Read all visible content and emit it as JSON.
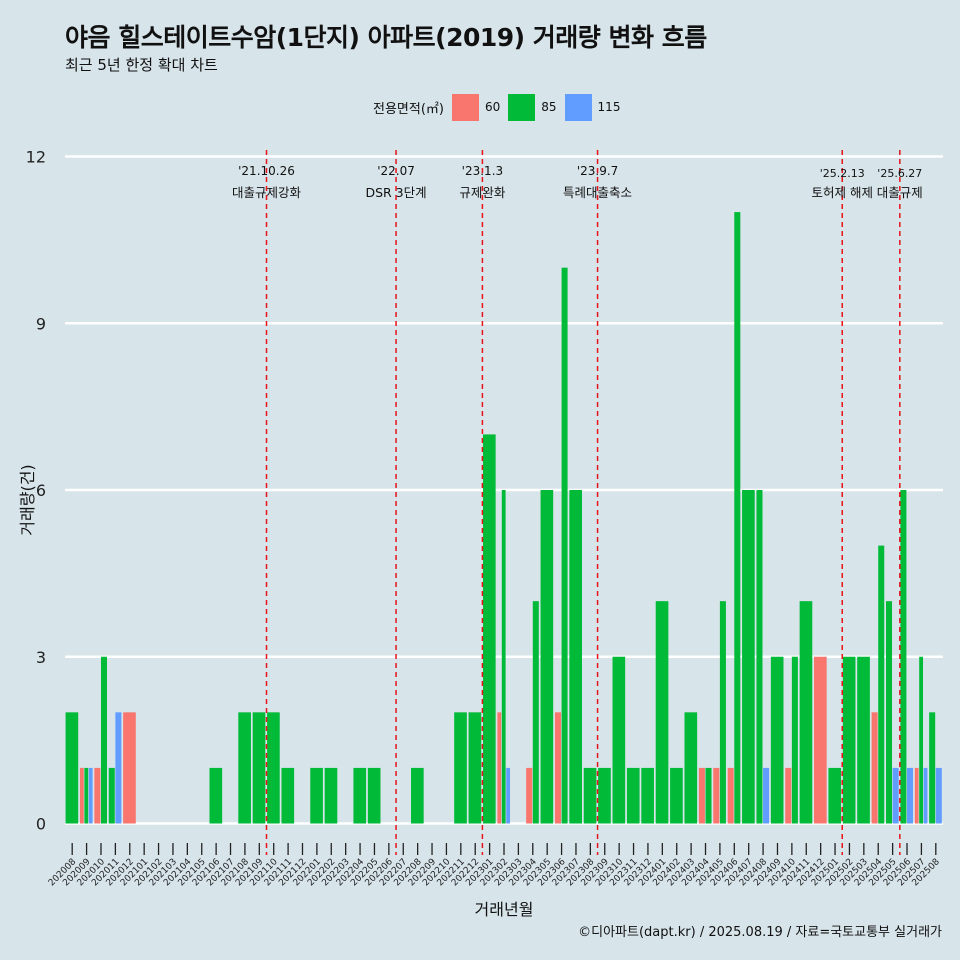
{
  "title": "야음 힐스테이트수암(1단지) 아파트(2019) 거래량 변화 흐름",
  "subtitle": "최근 5년 한정 확대 차트",
  "caption": "©디아파트(dapt.kr) / 2025.08.19 / 자료=국토교통부 실거래가",
  "legend": {
    "title": "전용면적(㎡)",
    "items": [
      {
        "label": "60",
        "color": "#f8766d"
      },
      {
        "label": "85",
        "color": "#00ba38"
      },
      {
        "label": "115",
        "color": "#619cff"
      }
    ]
  },
  "chart_data": {
    "type": "bar",
    "xlabel": "거래년월",
    "ylabel": "거래량(건)",
    "ylim": [
      0,
      12
    ],
    "yticks": [
      0,
      3,
      6,
      9,
      12
    ],
    "grid": true,
    "legend_placement": "top",
    "categories": [
      "202008",
      "202009",
      "202010",
      "202011",
      "202012",
      "202101",
      "202102",
      "202103",
      "202104",
      "202105",
      "202106",
      "202107",
      "202108",
      "202109",
      "202110",
      "202111",
      "202112",
      "202201",
      "202202",
      "202203",
      "202204",
      "202205",
      "202206",
      "202207",
      "202208",
      "202209",
      "202210",
      "202211",
      "202212",
      "202301",
      "202302",
      "202303",
      "202304",
      "202305",
      "202306",
      "202307",
      "202308",
      "202309",
      "202310",
      "202311",
      "202312",
      "202401",
      "202402",
      "202403",
      "202404",
      "202405",
      "202406",
      "202407",
      "202408",
      "202409",
      "202410",
      "202411",
      "202412",
      "202501",
      "202502",
      "202503",
      "202504",
      "202505",
      "202506",
      "202507",
      "202508"
    ],
    "series": [
      {
        "name": "60",
        "color": "#f8766d",
        "values": [
          0,
          1,
          1,
          0,
          2,
          0,
          0,
          0,
          0,
          0,
          0,
          0,
          0,
          0,
          0,
          0,
          0,
          0,
          0,
          0,
          0,
          0,
          0,
          0,
          0,
          0,
          0,
          0,
          0,
          0,
          2,
          0,
          1,
          0,
          2,
          0,
          0,
          0,
          0,
          0,
          0,
          0,
          0,
          0,
          1,
          1,
          1,
          0,
          0,
          0,
          1,
          0,
          3,
          0,
          0,
          0,
          2,
          0,
          0,
          1,
          0
        ]
      },
      {
        "name": "85",
        "color": "#00ba38",
        "values": [
          2,
          1,
          3,
          1,
          0,
          0,
          0,
          0,
          0,
          0,
          1,
          0,
          2,
          2,
          2,
          1,
          0,
          1,
          1,
          0,
          1,
          1,
          0,
          0,
          1,
          0,
          0,
          2,
          2,
          7,
          6,
          0,
          4,
          6,
          10,
          6,
          1,
          1,
          3,
          1,
          1,
          4,
          1,
          2,
          1,
          4,
          11,
          6,
          6,
          3,
          3,
          4,
          0,
          1,
          3,
          3,
          5,
          4,
          6,
          3,
          2
        ]
      },
      {
        "name": "115",
        "color": "#619cff",
        "values": [
          0,
          1,
          0,
          2,
          0,
          0,
          0,
          0,
          0,
          0,
          0,
          0,
          0,
          0,
          0,
          0,
          0,
          0,
          0,
          0,
          0,
          0,
          0,
          0,
          0,
          0,
          0,
          0,
          0,
          0,
          1,
          0,
          0,
          0,
          0,
          0,
          0,
          0,
          0,
          0,
          0,
          0,
          0,
          0,
          0,
          0,
          0,
          0,
          1,
          0,
          0,
          0,
          0,
          0,
          0,
          0,
          0,
          1,
          1,
          1,
          1
        ]
      }
    ],
    "annotations": [
      {
        "after": "202109",
        "date": "'21.10.26",
        "text": "대출규제강화"
      },
      {
        "after": "202206",
        "date": "'22.07",
        "text": "DSR 3단계"
      },
      {
        "after": "202212",
        "date": "'23.1.3",
        "text": "규제완화"
      },
      {
        "after": "202308",
        "date": "'23.9.7",
        "text": "특례대출축소"
      },
      {
        "after": "202501",
        "date": "'25.2.13",
        "text": "토허제 해제"
      },
      {
        "after": "202505",
        "date": "'25.6.27",
        "text": "대출규제"
      }
    ]
  }
}
